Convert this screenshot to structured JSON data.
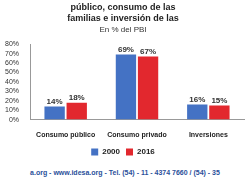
{
  "chart_data": {
    "type": "bar",
    "title": "público, consumo de las familias e inversión de las",
    "subtitle": "En % del PBI",
    "categories": [
      "Consumo público",
      "Consumo privado",
      "Inversiones"
    ],
    "series": [
      {
        "name": "2000",
        "color": "#4472c4",
        "values": [
          14,
          69,
          16
        ],
        "value_labels": [
          "14%",
          "69%",
          "16%"
        ]
      },
      {
        "name": "2016",
        "color": "#e2282e",
        "values": [
          18,
          67,
          15
        ],
        "value_labels": [
          "18%",
          "67%",
          "15%"
        ]
      }
    ],
    "ylim": [
      0,
      80
    ],
    "yticks": [
      {
        "value": 0,
        "label": "0%"
      },
      {
        "value": 10,
        "label": "10%"
      },
      {
        "value": 20,
        "label": "20%"
      },
      {
        "value": 30,
        "label": "30%"
      },
      {
        "value": 40,
        "label": "40%"
      },
      {
        "value": 50,
        "label": "50%"
      },
      {
        "value": 60,
        "label": "60%"
      },
      {
        "value": 70,
        "label": "70%"
      },
      {
        "value": 80,
        "label": "80%"
      }
    ],
    "grid": false,
    "legend": "bottom",
    "data_labels": true,
    "annotations": [
      "a.org - www.idesa.org - Tel. (54) - 11 - 4374 7660 / (54) - 35"
    ]
  }
}
